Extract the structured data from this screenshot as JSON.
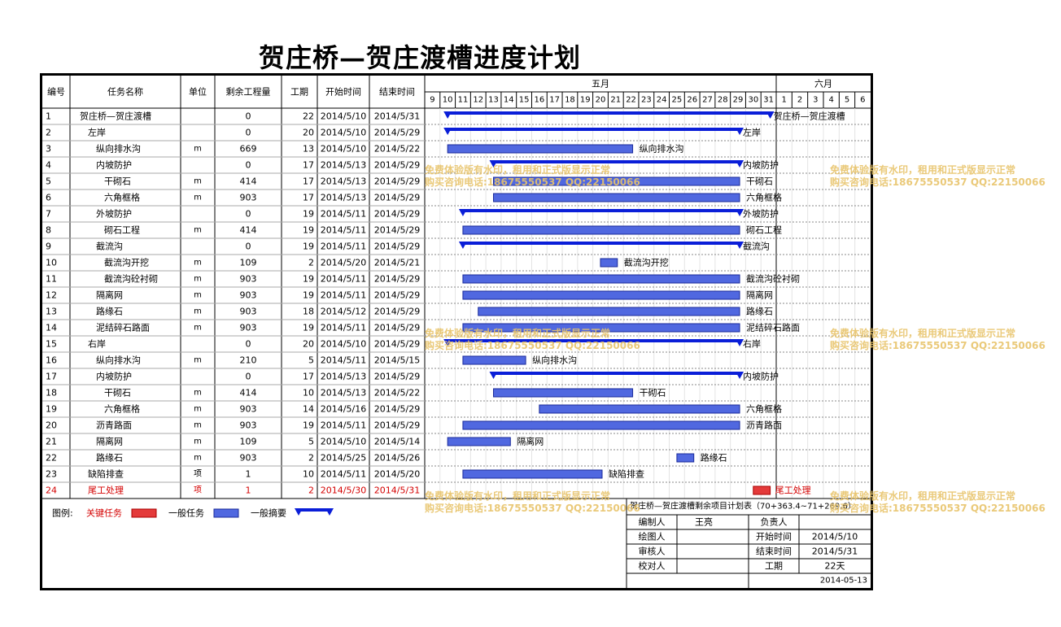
{
  "title": "贺庄桥—贺庄渡槽进度计划",
  "columns": [
    "编号",
    "任务名称",
    "单位",
    "剩余工程量",
    "工期",
    "开始时间",
    "结束时间"
  ],
  "months": [
    {
      "label": "五月",
      "days": [
        "9",
        "10",
        "11",
        "12",
        "13",
        "14",
        "15",
        "16",
        "17",
        "18",
        "19",
        "20",
        "21",
        "22",
        "23",
        "24",
        "25",
        "26",
        "27",
        "28",
        "29",
        "30",
        "31"
      ]
    },
    {
      "label": "六月",
      "days": [
        "1",
        "2",
        "3",
        "4",
        "5",
        "6"
      ]
    }
  ],
  "tasks": [
    {
      "id": "1",
      "name": "贺庄桥—贺庄渡槽",
      "level": 0,
      "unit": "",
      "qty": "0",
      "dur": "22",
      "start": "2014/5/10",
      "end": "2014/5/31",
      "type": "summary",
      "bar_start": [
        5,
        10
      ],
      "bar_end": [
        5,
        31
      ],
      "bar_label": "贺庄桥—贺庄渡槽"
    },
    {
      "id": "2",
      "name": "左岸",
      "level": 1,
      "unit": "",
      "qty": "0",
      "dur": "20",
      "start": "2014/5/10",
      "end": "2014/5/29",
      "type": "summary",
      "bar_start": [
        5,
        10
      ],
      "bar_end": [
        5,
        29
      ],
      "bar_label": "左岸"
    },
    {
      "id": "3",
      "name": "纵向排水沟",
      "level": 2,
      "unit": "m",
      "qty": "669",
      "dur": "13",
      "start": "2014/5/10",
      "end": "2014/5/22",
      "type": "task",
      "bar_start": [
        5,
        10
      ],
      "bar_end": [
        5,
        22
      ],
      "bar_label": "纵向排水沟"
    },
    {
      "id": "4",
      "name": "内坡防护",
      "level": 2,
      "unit": "",
      "qty": "0",
      "dur": "17",
      "start": "2014/5/13",
      "end": "2014/5/29",
      "type": "summary",
      "bar_start": [
        5,
        13
      ],
      "bar_end": [
        5,
        29
      ],
      "bar_label": "内坡防护"
    },
    {
      "id": "5",
      "name": "干砌石",
      "level": 3,
      "unit": "m",
      "qty": "414",
      "dur": "17",
      "start": "2014/5/13",
      "end": "2014/5/29",
      "type": "task",
      "bar_start": [
        5,
        13
      ],
      "bar_end": [
        5,
        29
      ],
      "bar_label": "干砌石"
    },
    {
      "id": "6",
      "name": "六角框格",
      "level": 3,
      "unit": "m",
      "qty": "903",
      "dur": "17",
      "start": "2014/5/13",
      "end": "2014/5/29",
      "type": "task",
      "bar_start": [
        5,
        13
      ],
      "bar_end": [
        5,
        29
      ],
      "bar_label": "六角框格"
    },
    {
      "id": "7",
      "name": "外坡防护",
      "level": 2,
      "unit": "",
      "qty": "0",
      "dur": "19",
      "start": "2014/5/11",
      "end": "2014/5/29",
      "type": "summary",
      "bar_start": [
        5,
        11
      ],
      "bar_end": [
        5,
        29
      ],
      "bar_label": "外坡防护"
    },
    {
      "id": "8",
      "name": "砌石工程",
      "level": 3,
      "unit": "m",
      "qty": "414",
      "dur": "19",
      "start": "2014/5/11",
      "end": "2014/5/29",
      "type": "task",
      "bar_start": [
        5,
        11
      ],
      "bar_end": [
        5,
        29
      ],
      "bar_label": "砌石工程"
    },
    {
      "id": "9",
      "name": "截流沟",
      "level": 2,
      "unit": "",
      "qty": "0",
      "dur": "19",
      "start": "2014/5/11",
      "end": "2014/5/29",
      "type": "summary",
      "bar_start": [
        5,
        11
      ],
      "bar_end": [
        5,
        29
      ],
      "bar_label": "截流沟"
    },
    {
      "id": "10",
      "name": "截流沟开挖",
      "level": 3,
      "unit": "m",
      "qty": "109",
      "dur": "2",
      "start": "2014/5/20",
      "end": "2014/5/21",
      "type": "task",
      "bar_start": [
        5,
        20
      ],
      "bar_end": [
        5,
        21
      ],
      "bar_label": "截流沟开挖"
    },
    {
      "id": "11",
      "name": "截流沟砼衬砌",
      "level": 3,
      "unit": "m",
      "qty": "903",
      "dur": "19",
      "start": "2014/5/11",
      "end": "2014/5/29",
      "type": "task",
      "bar_start": [
        5,
        11
      ],
      "bar_end": [
        5,
        29
      ],
      "bar_label": "截流沟砼衬砌"
    },
    {
      "id": "12",
      "name": "隔离网",
      "level": 2,
      "unit": "m",
      "qty": "903",
      "dur": "19",
      "start": "2014/5/11",
      "end": "2014/5/29",
      "type": "task",
      "bar_start": [
        5,
        11
      ],
      "bar_end": [
        5,
        29
      ],
      "bar_label": "隔离网"
    },
    {
      "id": "13",
      "name": "路缘石",
      "level": 2,
      "unit": "m",
      "qty": "903",
      "dur": "18",
      "start": "2014/5/12",
      "end": "2014/5/29",
      "type": "task",
      "bar_start": [
        5,
        12
      ],
      "bar_end": [
        5,
        29
      ],
      "bar_label": "路缘石"
    },
    {
      "id": "14",
      "name": "泥结碎石路面",
      "level": 2,
      "unit": "m",
      "qty": "903",
      "dur": "19",
      "start": "2014/5/11",
      "end": "2014/5/29",
      "type": "task",
      "bar_start": [
        5,
        11
      ],
      "bar_end": [
        5,
        29
      ],
      "bar_label": "泥结碎石路面"
    },
    {
      "id": "15",
      "name": "右岸",
      "level": 1,
      "unit": "",
      "qty": "0",
      "dur": "20",
      "start": "2014/5/10",
      "end": "2014/5/29",
      "type": "summary",
      "bar_start": [
        5,
        10
      ],
      "bar_end": [
        5,
        29
      ],
      "bar_label": "右岸"
    },
    {
      "id": "16",
      "name": "纵向排水沟",
      "level": 2,
      "unit": "m",
      "qty": "210",
      "dur": "5",
      "start": "2014/5/11",
      "end": "2014/5/15",
      "type": "task",
      "bar_start": [
        5,
        11
      ],
      "bar_end": [
        5,
        15
      ],
      "bar_label": "纵向排水沟"
    },
    {
      "id": "17",
      "name": "内坡防护",
      "level": 2,
      "unit": "",
      "qty": "0",
      "dur": "17",
      "start": "2014/5/13",
      "end": "2014/5/29",
      "type": "summary",
      "bar_start": [
        5,
        13
      ],
      "bar_end": [
        5,
        29
      ],
      "bar_label": "内坡防护"
    },
    {
      "id": "18",
      "name": "干砌石",
      "level": 3,
      "unit": "m",
      "qty": "414",
      "dur": "10",
      "start": "2014/5/13",
      "end": "2014/5/22",
      "type": "task",
      "bar_start": [
        5,
        13
      ],
      "bar_end": [
        5,
        22
      ],
      "bar_label": "干砌石"
    },
    {
      "id": "19",
      "name": "六角框格",
      "level": 3,
      "unit": "m",
      "qty": "903",
      "dur": "14",
      "start": "2014/5/16",
      "end": "2014/5/29",
      "type": "task",
      "bar_start": [
        5,
        16
      ],
      "bar_end": [
        5,
        29
      ],
      "bar_label": "六角框格"
    },
    {
      "id": "20",
      "name": "沥青路面",
      "level": 2,
      "unit": "m",
      "qty": "903",
      "dur": "19",
      "start": "2014/5/11",
      "end": "2014/5/29",
      "type": "task",
      "bar_start": [
        5,
        11
      ],
      "bar_end": [
        5,
        29
      ],
      "bar_label": "沥青路面"
    },
    {
      "id": "21",
      "name": "隔离网",
      "level": 2,
      "unit": "m",
      "qty": "109",
      "dur": "5",
      "start": "2014/5/10",
      "end": "2014/5/14",
      "type": "task",
      "bar_start": [
        5,
        10
      ],
      "bar_end": [
        5,
        14
      ],
      "bar_label": "隔离网"
    },
    {
      "id": "22",
      "name": "路缘石",
      "level": 2,
      "unit": "m",
      "qty": "903",
      "dur": "2",
      "start": "2014/5/25",
      "end": "2014/5/26",
      "type": "task",
      "bar_start": [
        5,
        25
      ],
      "bar_end": [
        5,
        26
      ],
      "bar_label": "路缘石"
    },
    {
      "id": "23",
      "name": "缺陷排查",
      "level": 1,
      "unit": "项",
      "qty": "1",
      "dur": "10",
      "start": "2014/5/11",
      "end": "2014/5/20",
      "type": "task",
      "bar_start": [
        5,
        11
      ],
      "bar_end": [
        5,
        20
      ],
      "bar_label": "缺陷排查"
    },
    {
      "id": "24",
      "name": "尾工处理",
      "level": 1,
      "unit": "项",
      "qty": "1",
      "dur": "2",
      "start": "2014/5/30",
      "end": "2014/5/31",
      "type": "critical",
      "bar_start": [
        5,
        30
      ],
      "bar_end": [
        5,
        31
      ],
      "bar_label": "尾工处理"
    }
  ],
  "legend": {
    "label": "图例:",
    "items": [
      {
        "label": "关键任务",
        "kind": "critical"
      },
      {
        "label": "一般任务",
        "kind": "task"
      },
      {
        "label": "一般摘要",
        "kind": "summary"
      }
    ]
  },
  "info_box": {
    "title": "贺庄桥—贺庄渡槽剩余项目计划表（70+363.4~71+269.6）",
    "rows": [
      {
        "k1": "编制人",
        "v1": "王亮",
        "k2": "负责人",
        "v2": ""
      },
      {
        "k1": "绘图人",
        "v1": "",
        "k2": "开始时间",
        "v2": "2014/5/10"
      },
      {
        "k1": "审核人",
        "v1": "",
        "k2": "结束时间",
        "v2": "2014/5/31"
      },
      {
        "k1": "校对人",
        "v1": "",
        "k2": "工期",
        "v2": "22天"
      }
    ],
    "date": "2014-05-13"
  },
  "watermarks": [
    {
      "line1": "免费体验版有水印，租用和正式版显示正常",
      "line2": "购买咨询电话:18675550537 QQ:22150066"
    }
  ],
  "colors": {
    "summary": "#0a1ed8",
    "task_fill": "#5068e0",
    "task_edge": "#1a2a9a",
    "critical_fill": "#e43a3a",
    "critical_text": "#d40000",
    "watermark": "#e8c46b"
  }
}
